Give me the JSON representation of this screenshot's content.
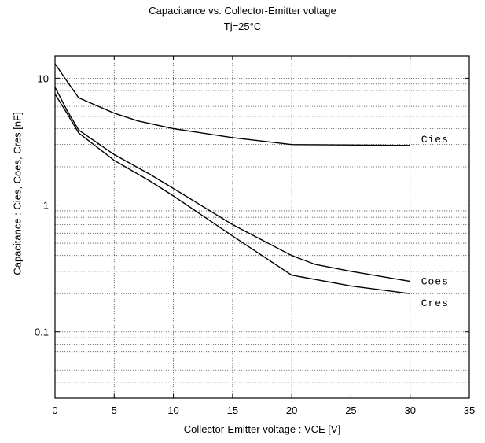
{
  "chart_data": {
    "type": "line",
    "title": "Capacitance  vs.  Collector-Emitter  voltage",
    "subtitle": "Tj=25°C",
    "xlabel": "Collector-Emitter  voltage  :  VCE [V]",
    "ylabel": "Capacitance  :  Cies, Coes, Cres  [nF]",
    "xlim": [
      0,
      35
    ],
    "ylim": [
      0.03,
      15
    ],
    "yscale": "log",
    "grid": true,
    "xticks": [
      0,
      5,
      10,
      15,
      20,
      25,
      30,
      35
    ],
    "yticks": [
      {
        "value": 0.1,
        "label": "0.1"
      },
      {
        "value": 1,
        "label": "1"
      },
      {
        "value": 10,
        "label": "10"
      }
    ],
    "series": [
      {
        "name": "Cies",
        "x": [
          0,
          1,
          2,
          5,
          7,
          10,
          15,
          20,
          30
        ],
        "y": [
          13,
          9.5,
          7,
          5.3,
          4.6,
          4.0,
          3.4,
          3.0,
          2.95
        ]
      },
      {
        "name": "Coes",
        "x": [
          0,
          1,
          2,
          5,
          8,
          10,
          15,
          20,
          22,
          25,
          30
        ],
        "y": [
          8.5,
          5.6,
          3.9,
          2.5,
          1.75,
          1.35,
          0.7,
          0.4,
          0.34,
          0.3,
          0.25
        ]
      },
      {
        "name": "Cres",
        "x": [
          0,
          1,
          2,
          5,
          8,
          10,
          15,
          20,
          25,
          30
        ],
        "y": [
          7.5,
          5.3,
          3.7,
          2.25,
          1.55,
          1.18,
          0.57,
          0.28,
          0.23,
          0.2
        ]
      }
    ]
  }
}
